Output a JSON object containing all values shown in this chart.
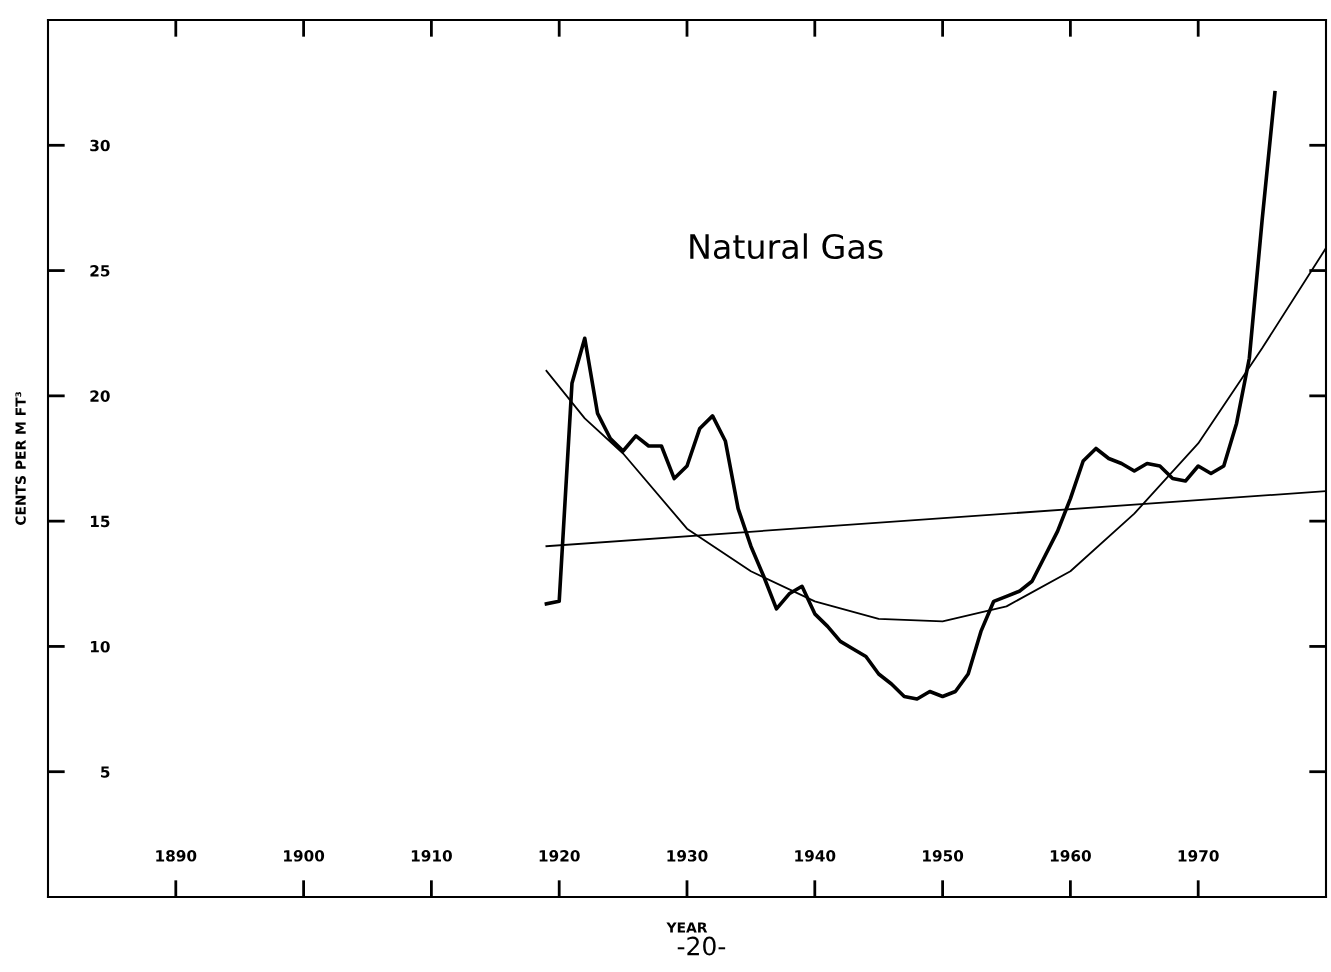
{
  "chart_data": {
    "type": "line",
    "xlabel": "YEAR",
    "ylabel": "CENTS PER M FT³",
    "annotations": [
      "Natural Gas",
      "-20-"
    ],
    "xlim": [
      1880,
      1980
    ],
    "xticks": [
      1890,
      1900,
      1910,
      1920,
      1930,
      1940,
      1950,
      1960,
      1970
    ],
    "ylim": [
      0,
      35
    ],
    "yticks": [
      5,
      10,
      15,
      20,
      25,
      30
    ],
    "grid": false,
    "marker": "none",
    "line_style": "solid",
    "series": [
      {
        "color": "#000000",
        "x": [
          1919,
          1920,
          1921,
          1922,
          1923,
          1924,
          1925,
          1926,
          1927,
          1928,
          1929,
          1930,
          1931,
          1932,
          1933,
          1934,
          1935,
          1936,
          1937,
          1938,
          1939,
          1940,
          1941,
          1942,
          1943,
          1944,
          1945,
          1946,
          1947,
          1948,
          1949,
          1950,
          1951,
          1952,
          1953,
          1954,
          1955,
          1956,
          1957,
          1958,
          1959,
          1960,
          1961,
          1962,
          1963,
          1964,
          1965,
          1966,
          1967,
          1968,
          1969,
          1970,
          1971,
          1972,
          1973,
          1974,
          1975,
          1976
        ],
        "values": [
          11.7,
          11.8,
          20.5,
          22.3,
          19.3,
          18.3,
          17.8,
          18.4,
          18.0,
          18.0,
          16.7,
          17.2,
          18.7,
          19.2,
          18.2,
          15.5,
          14.0,
          12.8,
          11.5,
          12.1,
          12.4,
          11.3,
          10.8,
          10.2,
          9.9,
          9.6,
          8.9,
          8.5,
          8.0,
          7.9,
          8.2,
          8.0,
          8.2,
          8.9,
          10.6,
          11.8,
          12.0,
          12.2,
          12.6,
          13.6,
          14.6,
          15.9,
          17.4,
          17.9,
          17.5,
          17.3,
          17.0,
          17.3,
          17.2,
          16.7,
          16.6,
          17.2,
          16.9,
          17.2,
          18.9,
          21.5,
          27.0,
          32.1
        ]
      },
      {
        "color": "#000000",
        "x": [
          1919,
          1980
        ],
        "values": [
          14.0,
          16.2
        ]
      },
      {
        "color": "#000000",
        "x": [
          1919,
          1922,
          1925,
          1930,
          1935,
          1940,
          1945,
          1950,
          1955,
          1960,
          1965,
          1970,
          1975,
          1980
        ],
        "values": [
          21.0,
          19.1,
          17.7,
          14.7,
          13.0,
          11.8,
          11.1,
          11.0,
          11.6,
          13.0,
          15.3,
          18.1,
          21.9,
          25.9
        ]
      }
    ]
  }
}
